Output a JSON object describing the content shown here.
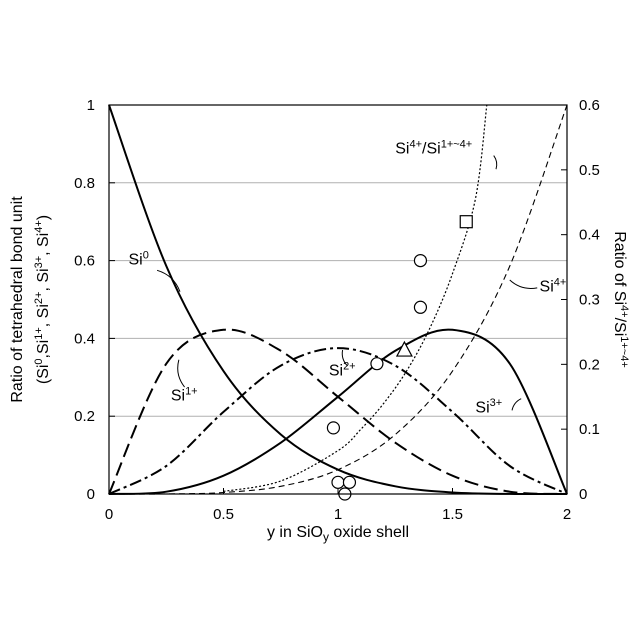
{
  "chart_data": {
    "type": "line",
    "xlabel_parts": [
      "y in SiO",
      "y",
      " oxide shell"
    ],
    "ylabel_left_line1": "Ratio of tetrahedral bond unit",
    "ylabel_left_line2_parts": [
      "(Si",
      "0",
      ",Si",
      "1+",
      ", Si",
      "2+",
      ", Si",
      "3+",
      ", Si",
      "4+",
      ")"
    ],
    "ylabel_right_parts": [
      "Ratio of Si",
      "4+",
      "/Si",
      "1+~4+"
    ],
    "xlim": [
      0,
      2
    ],
    "ylim_left": [
      0,
      1
    ],
    "ylim_right": [
      0,
      0.6
    ],
    "grid": "horizontal",
    "x_ticks": [
      "0",
      "0.5",
      "1",
      "1.5",
      "2"
    ],
    "y_left_ticks": [
      "0",
      "0.2",
      "0.4",
      "0.6",
      "0.8",
      "1"
    ],
    "y_right_ticks": [
      "0",
      "0.1",
      "0.2",
      "0.3",
      "0.4",
      "0.5",
      "0.6"
    ],
    "x_tick_values": [
      0,
      0.5,
      1,
      1.5,
      2
    ],
    "y_left_tick_values": [
      0,
      0.2,
      0.4,
      0.6,
      0.8,
      1
    ],
    "y_right_tick_values": [
      0,
      0.1,
      0.2,
      0.3,
      0.4,
      0.5,
      0.6
    ],
    "series": [
      {
        "label_parts": [
          "Si",
          "0"
        ],
        "axis": "left",
        "style": "solid",
        "x": [
          0,
          0.25,
          0.5,
          0.75,
          1.0,
          1.25,
          1.5,
          1.75,
          2.0
        ],
        "y": [
          1.0,
          0.586,
          0.316,
          0.153,
          0.0625,
          0.0198,
          0.0039,
          0.0002,
          0.0
        ]
      },
      {
        "label_parts": [
          "Si",
          "1+"
        ],
        "axis": "left",
        "style": "long-dash",
        "x": [
          0,
          0.25,
          0.5,
          0.75,
          1.0,
          1.25,
          1.5,
          1.75,
          2.0
        ],
        "y": [
          0.0,
          0.335,
          0.422,
          0.368,
          0.25,
          0.132,
          0.047,
          0.0059,
          0.0
        ]
      },
      {
        "label_parts": [
          "Si",
          "2+"
        ],
        "axis": "left",
        "style": "dash-dot",
        "x": [
          0,
          0.25,
          0.5,
          0.75,
          1.0,
          1.25,
          1.5,
          1.75,
          2.0
        ],
        "y": [
          0.0,
          0.072,
          0.211,
          0.33,
          0.375,
          0.33,
          0.211,
          0.072,
          0.0
        ]
      },
      {
        "label_parts": [
          "Si",
          "3+"
        ],
        "axis": "left",
        "style": "solid",
        "x": [
          0,
          0.25,
          0.5,
          0.75,
          1.0,
          1.25,
          1.5,
          1.75,
          2.0
        ],
        "y": [
          0.0,
          0.0059,
          0.047,
          0.132,
          0.25,
          0.368,
          0.422,
          0.335,
          0.0
        ]
      },
      {
        "label_parts": [
          "Si",
          "4+"
        ],
        "axis": "left",
        "style": "dashed",
        "x": [
          0,
          0.25,
          0.5,
          0.75,
          1.0,
          1.25,
          1.5,
          1.75,
          2.0
        ],
        "y": [
          0.0,
          0.0002,
          0.0039,
          0.0198,
          0.0625,
          0.153,
          0.316,
          0.586,
          1.0
        ]
      },
      {
        "label_parts": [
          "Si",
          "4+",
          "/Si",
          "1+~4+"
        ],
        "axis": "right",
        "style": "dotted",
        "x": [
          0.5,
          0.75,
          1.0,
          1.1,
          1.2,
          1.3,
          1.4,
          1.5,
          1.6,
          1.65
        ],
        "y": [
          0.004,
          0.02,
          0.067,
          0.1,
          0.14,
          0.19,
          0.255,
          0.34,
          0.455,
          0.6
        ]
      }
    ],
    "markers": [
      {
        "shape": "circle",
        "axis": "left",
        "x": 0.98,
        "y": 0.17
      },
      {
        "shape": "circle",
        "axis": "left",
        "x": 1.0,
        "y": 0.03
      },
      {
        "shape": "circle",
        "axis": "left",
        "x": 1.03,
        "y": 0.0
      },
      {
        "shape": "circle",
        "axis": "left",
        "x": 1.05,
        "y": 0.03
      },
      {
        "shape": "circle",
        "axis": "left",
        "x": 1.17,
        "y": 0.335
      },
      {
        "shape": "circle",
        "axis": "left",
        "x": 1.36,
        "y": 0.48
      },
      {
        "shape": "circle",
        "axis": "left",
        "x": 1.36,
        "y": 0.6
      },
      {
        "shape": "triangle",
        "axis": "left",
        "x": 1.29,
        "y": 0.37
      },
      {
        "shape": "square",
        "axis": "left",
        "x": 1.56,
        "y": 0.7
      }
    ],
    "annotations": [
      {
        "parts": [
          "Si",
          "0"
        ],
        "tx": 0.085,
        "ty": 0.59,
        "lx1": 0.21,
        "ly1": 0.575,
        "lx2": 0.31,
        "ly2": 0.52
      },
      {
        "parts": [
          "Si",
          "1+"
        ],
        "tx": 0.27,
        "ty": 0.24,
        "lx1": 0.33,
        "ly1": 0.275,
        "lx2": 0.305,
        "ly2": 0.345
      },
      {
        "parts": [
          "Si",
          "2+"
        ],
        "tx": 0.96,
        "ty": 0.305,
        "lx1": 1.04,
        "ly1": 0.33,
        "lx2": 1.02,
        "ly2": 0.37
      },
      {
        "parts": [
          "Si",
          "3+"
        ],
        "tx": 1.6,
        "ty": 0.21,
        "lx1": 1.76,
        "ly1": 0.215,
        "lx2": 1.8,
        "ly2": 0.245
      },
      {
        "parts": [
          "Si",
          "4+"
        ],
        "tx": 1.88,
        "ty": 0.52,
        "lx1": 1.87,
        "ly1": 0.53,
        "lx2": 1.75,
        "ly2": 0.55
      },
      {
        "parts": [
          "Si",
          "4+",
          "/Si",
          "1+~4+"
        ],
        "tx": 1.25,
        "ty": 0.875,
        "lx1": 1.68,
        "ly1": 0.87,
        "lx2": 1.69,
        "ly2": 0.835
      }
    ]
  }
}
